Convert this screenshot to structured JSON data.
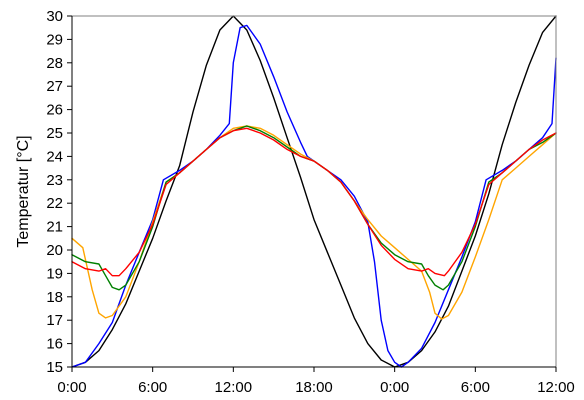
{
  "chart_data": {
    "type": "line",
    "title": "",
    "xlabel": "",
    "ylabel": "Temperatur [°C]",
    "x_unit": "hours",
    "xlim": [
      0,
      36
    ],
    "ylim": [
      15,
      30
    ],
    "x_ticks": [
      {
        "x": 0,
        "label": "0:00"
      },
      {
        "x": 6,
        "label": "6:00"
      },
      {
        "x": 12,
        "label": "12:00"
      },
      {
        "x": 18,
        "label": "18:00"
      },
      {
        "x": 24,
        "label": "0:00"
      },
      {
        "x": 30,
        "label": "6:00"
      },
      {
        "x": 36,
        "label": "12:00"
      }
    ],
    "y_ticks": [
      15,
      16,
      17,
      18,
      19,
      20,
      21,
      22,
      23,
      24,
      25,
      26,
      27,
      28,
      29,
      30
    ],
    "grid": false,
    "legend": "none",
    "series": [
      {
        "color": "#000000",
        "points": [
          [
            0,
            15
          ],
          [
            1,
            15.2
          ],
          [
            2,
            15.7
          ],
          [
            3,
            16.6
          ],
          [
            4,
            17.7
          ],
          [
            5,
            19.1
          ],
          [
            6,
            20.5
          ],
          [
            7,
            22.1
          ],
          [
            8,
            23.6
          ],
          [
            9,
            25.9
          ],
          [
            10,
            27.9
          ],
          [
            11,
            29.4
          ],
          [
            12,
            30
          ],
          [
            13,
            29.4
          ],
          [
            14,
            28.1
          ],
          [
            15,
            26.5
          ],
          [
            16,
            24.8
          ],
          [
            17,
            23.1
          ],
          [
            18,
            21.3
          ],
          [
            19,
            19.9
          ],
          [
            20,
            18.5
          ],
          [
            21,
            17.1
          ],
          [
            22,
            16
          ],
          [
            23,
            15.3
          ],
          [
            24,
            15
          ],
          [
            25,
            15.2
          ],
          [
            26,
            15.7
          ],
          [
            27,
            16.5
          ],
          [
            28,
            17.6
          ],
          [
            29,
            19.1
          ],
          [
            30,
            20.6
          ],
          [
            31,
            22.4
          ],
          [
            32,
            24.5
          ],
          [
            33,
            26.3
          ],
          [
            34,
            27.9
          ],
          [
            35,
            29.3
          ],
          [
            36,
            30
          ]
        ]
      },
      {
        "color": "#0000ff",
        "points": [
          [
            0,
            15
          ],
          [
            1,
            15.2
          ],
          [
            2,
            16
          ],
          [
            3,
            16.9
          ],
          [
            4,
            18.5
          ],
          [
            5,
            19.9
          ],
          [
            6,
            21.3
          ],
          [
            6.8,
            23
          ],
          [
            8,
            23.4
          ],
          [
            9,
            23.8
          ],
          [
            10,
            24.3
          ],
          [
            11,
            24.9
          ],
          [
            11.7,
            25.4
          ],
          [
            12,
            28
          ],
          [
            12.5,
            29.5
          ],
          [
            13,
            29.6
          ],
          [
            14,
            28.8
          ],
          [
            15,
            27.4
          ],
          [
            16,
            25.9
          ],
          [
            17,
            24.6
          ],
          [
            17.5,
            24
          ],
          [
            18,
            23.8
          ],
          [
            19,
            23.4
          ],
          [
            20,
            23
          ],
          [
            21,
            22.3
          ],
          [
            22,
            21.2
          ],
          [
            22.5,
            19.5
          ],
          [
            23,
            17
          ],
          [
            23.5,
            15.7
          ],
          [
            24,
            15.2
          ],
          [
            24.5,
            15
          ],
          [
            25,
            15.2
          ],
          [
            26,
            15.8
          ],
          [
            27,
            16.9
          ],
          [
            28,
            18.3
          ],
          [
            29,
            19.7
          ],
          [
            30,
            21.2
          ],
          [
            30.8,
            23
          ],
          [
            32,
            23.4
          ],
          [
            33,
            23.8
          ],
          [
            34,
            24.3
          ],
          [
            35,
            24.8
          ],
          [
            35.7,
            25.4
          ],
          [
            36,
            28.2
          ]
        ]
      },
      {
        "color": "#ffa500",
        "points": [
          [
            0,
            20.5
          ],
          [
            0.8,
            20.1
          ],
          [
            1.5,
            18.3
          ],
          [
            2,
            17.3
          ],
          [
            2.5,
            17.1
          ],
          [
            3,
            17.2
          ],
          [
            4,
            18
          ],
          [
            5,
            19.5
          ],
          [
            6,
            21.2
          ],
          [
            7,
            22.9
          ],
          [
            8,
            23.3
          ],
          [
            9,
            23.8
          ],
          [
            10,
            24.3
          ],
          [
            11,
            24.8
          ],
          [
            12,
            25.2
          ],
          [
            13,
            25.3
          ],
          [
            14,
            25.2
          ],
          [
            15,
            24.9
          ],
          [
            16,
            24.5
          ],
          [
            17,
            24.1
          ],
          [
            18,
            23.8
          ],
          [
            19,
            23.4
          ],
          [
            20,
            22.9
          ],
          [
            21,
            22.1
          ],
          [
            22,
            21.3
          ],
          [
            23,
            20.6
          ],
          [
            24,
            20.1
          ],
          [
            25,
            19.6
          ],
          [
            26,
            19.1
          ],
          [
            26.6,
            18.2
          ],
          [
            27,
            17.3
          ],
          [
            27.5,
            17.05
          ],
          [
            28,
            17.2
          ],
          [
            29,
            18.2
          ],
          [
            30,
            19.7
          ],
          [
            31,
            21.3
          ],
          [
            32,
            23
          ],
          [
            33,
            23.5
          ],
          [
            34,
            24
          ],
          [
            35,
            24.5
          ],
          [
            36,
            25
          ]
        ]
      },
      {
        "color": "#008000",
        "points": [
          [
            0,
            19.8
          ],
          [
            1,
            19.5
          ],
          [
            2,
            19.4
          ],
          [
            2.5,
            18.9
          ],
          [
            3,
            18.4
          ],
          [
            3.5,
            18.3
          ],
          [
            4,
            18.5
          ],
          [
            5,
            19.5
          ],
          [
            6,
            21
          ],
          [
            7,
            22.9
          ],
          [
            8,
            23.3
          ],
          [
            9,
            23.8
          ],
          [
            10,
            24.3
          ],
          [
            11,
            24.8
          ],
          [
            12,
            25.1
          ],
          [
            13,
            25.3
          ],
          [
            14,
            25.1
          ],
          [
            15,
            24.8
          ],
          [
            16,
            24.4
          ],
          [
            17,
            24
          ],
          [
            18,
            23.8
          ],
          [
            19,
            23.4
          ],
          [
            20,
            22.9
          ],
          [
            21,
            22.1
          ],
          [
            22,
            21.1
          ],
          [
            23,
            20.3
          ],
          [
            24,
            19.8
          ],
          [
            25,
            19.5
          ],
          [
            26,
            19.4
          ],
          [
            26.5,
            18.9
          ],
          [
            27,
            18.5
          ],
          [
            27.6,
            18.3
          ],
          [
            28,
            18.5
          ],
          [
            29,
            19.5
          ],
          [
            30,
            21
          ],
          [
            31,
            22.9
          ],
          [
            32,
            23.3
          ],
          [
            33,
            23.8
          ],
          [
            34,
            24.3
          ],
          [
            35,
            24.6
          ],
          [
            36,
            25
          ]
        ]
      },
      {
        "color": "#ff0000",
        "points": [
          [
            0,
            19.5
          ],
          [
            1,
            19.2
          ],
          [
            2,
            19.1
          ],
          [
            2.5,
            19.2
          ],
          [
            3,
            18.9
          ],
          [
            3.5,
            18.9
          ],
          [
            4,
            19.2
          ],
          [
            5,
            19.9
          ],
          [
            6,
            21.1
          ],
          [
            7,
            22.8
          ],
          [
            8,
            23.3
          ],
          [
            9,
            23.8
          ],
          [
            10,
            24.3
          ],
          [
            11,
            24.8
          ],
          [
            12,
            25.1
          ],
          [
            13,
            25.2
          ],
          [
            14,
            25
          ],
          [
            15,
            24.7
          ],
          [
            16,
            24.3
          ],
          [
            17,
            24
          ],
          [
            18,
            23.8
          ],
          [
            19,
            23.4
          ],
          [
            20,
            22.9
          ],
          [
            21,
            22.1
          ],
          [
            22,
            21.1
          ],
          [
            23,
            20.2
          ],
          [
            24,
            19.6
          ],
          [
            25,
            19.2
          ],
          [
            26,
            19.1
          ],
          [
            26.5,
            19.2
          ],
          [
            27,
            19
          ],
          [
            27.7,
            18.9
          ],
          [
            28,
            19.1
          ],
          [
            29,
            19.9
          ],
          [
            30,
            21.1
          ],
          [
            31,
            22.8
          ],
          [
            32,
            23.3
          ],
          [
            33,
            23.8
          ],
          [
            34,
            24.3
          ],
          [
            35,
            24.7
          ],
          [
            36,
            25
          ]
        ]
      }
    ]
  }
}
